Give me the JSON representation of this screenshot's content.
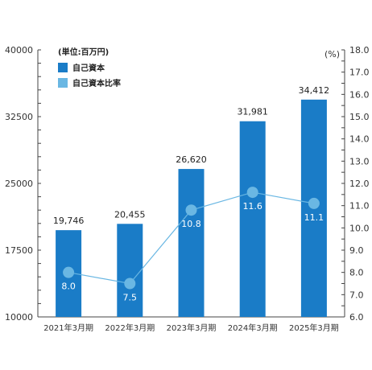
{
  "chart_data": {
    "type": "bar",
    "categories": [
      "2021年3月期",
      "2022年3月期",
      "2023年3月期",
      "2024年3月期",
      "2025年3月期"
    ],
    "unit_left": "(単位:百万円)",
    "unit_right": "(%)",
    "ylim_left": [
      10000,
      40000
    ],
    "yticks_left": [
      10000,
      17500,
      25000,
      32500,
      40000
    ],
    "ylim_right": [
      6.0,
      18.0
    ],
    "yticks_right": [
      "6.0",
      "7.0",
      "8.0",
      "9.0",
      "10.0",
      "11.0",
      "12.0",
      "13.0",
      "14.0",
      "15.0",
      "16.0",
      "17.0",
      "18.0"
    ],
    "series": [
      {
        "name": "自己資本",
        "type": "bar",
        "axis": "left",
        "color": "#1a7cc7",
        "values": [
          19746,
          20455,
          26620,
          31981,
          34412
        ],
        "labels": [
          "19,746",
          "20,455",
          "26,620",
          "31,981",
          "34,412"
        ]
      },
      {
        "name": "自己資本比率",
        "type": "line",
        "axis": "right",
        "color": "#6ab7e3",
        "values": [
          8.0,
          7.5,
          10.8,
          11.6,
          11.1
        ],
        "labels": [
          "8.0",
          "7.5",
          "10.8",
          "11.6",
          "11.1"
        ]
      }
    ],
    "grid": false,
    "legend": "top-left"
  }
}
